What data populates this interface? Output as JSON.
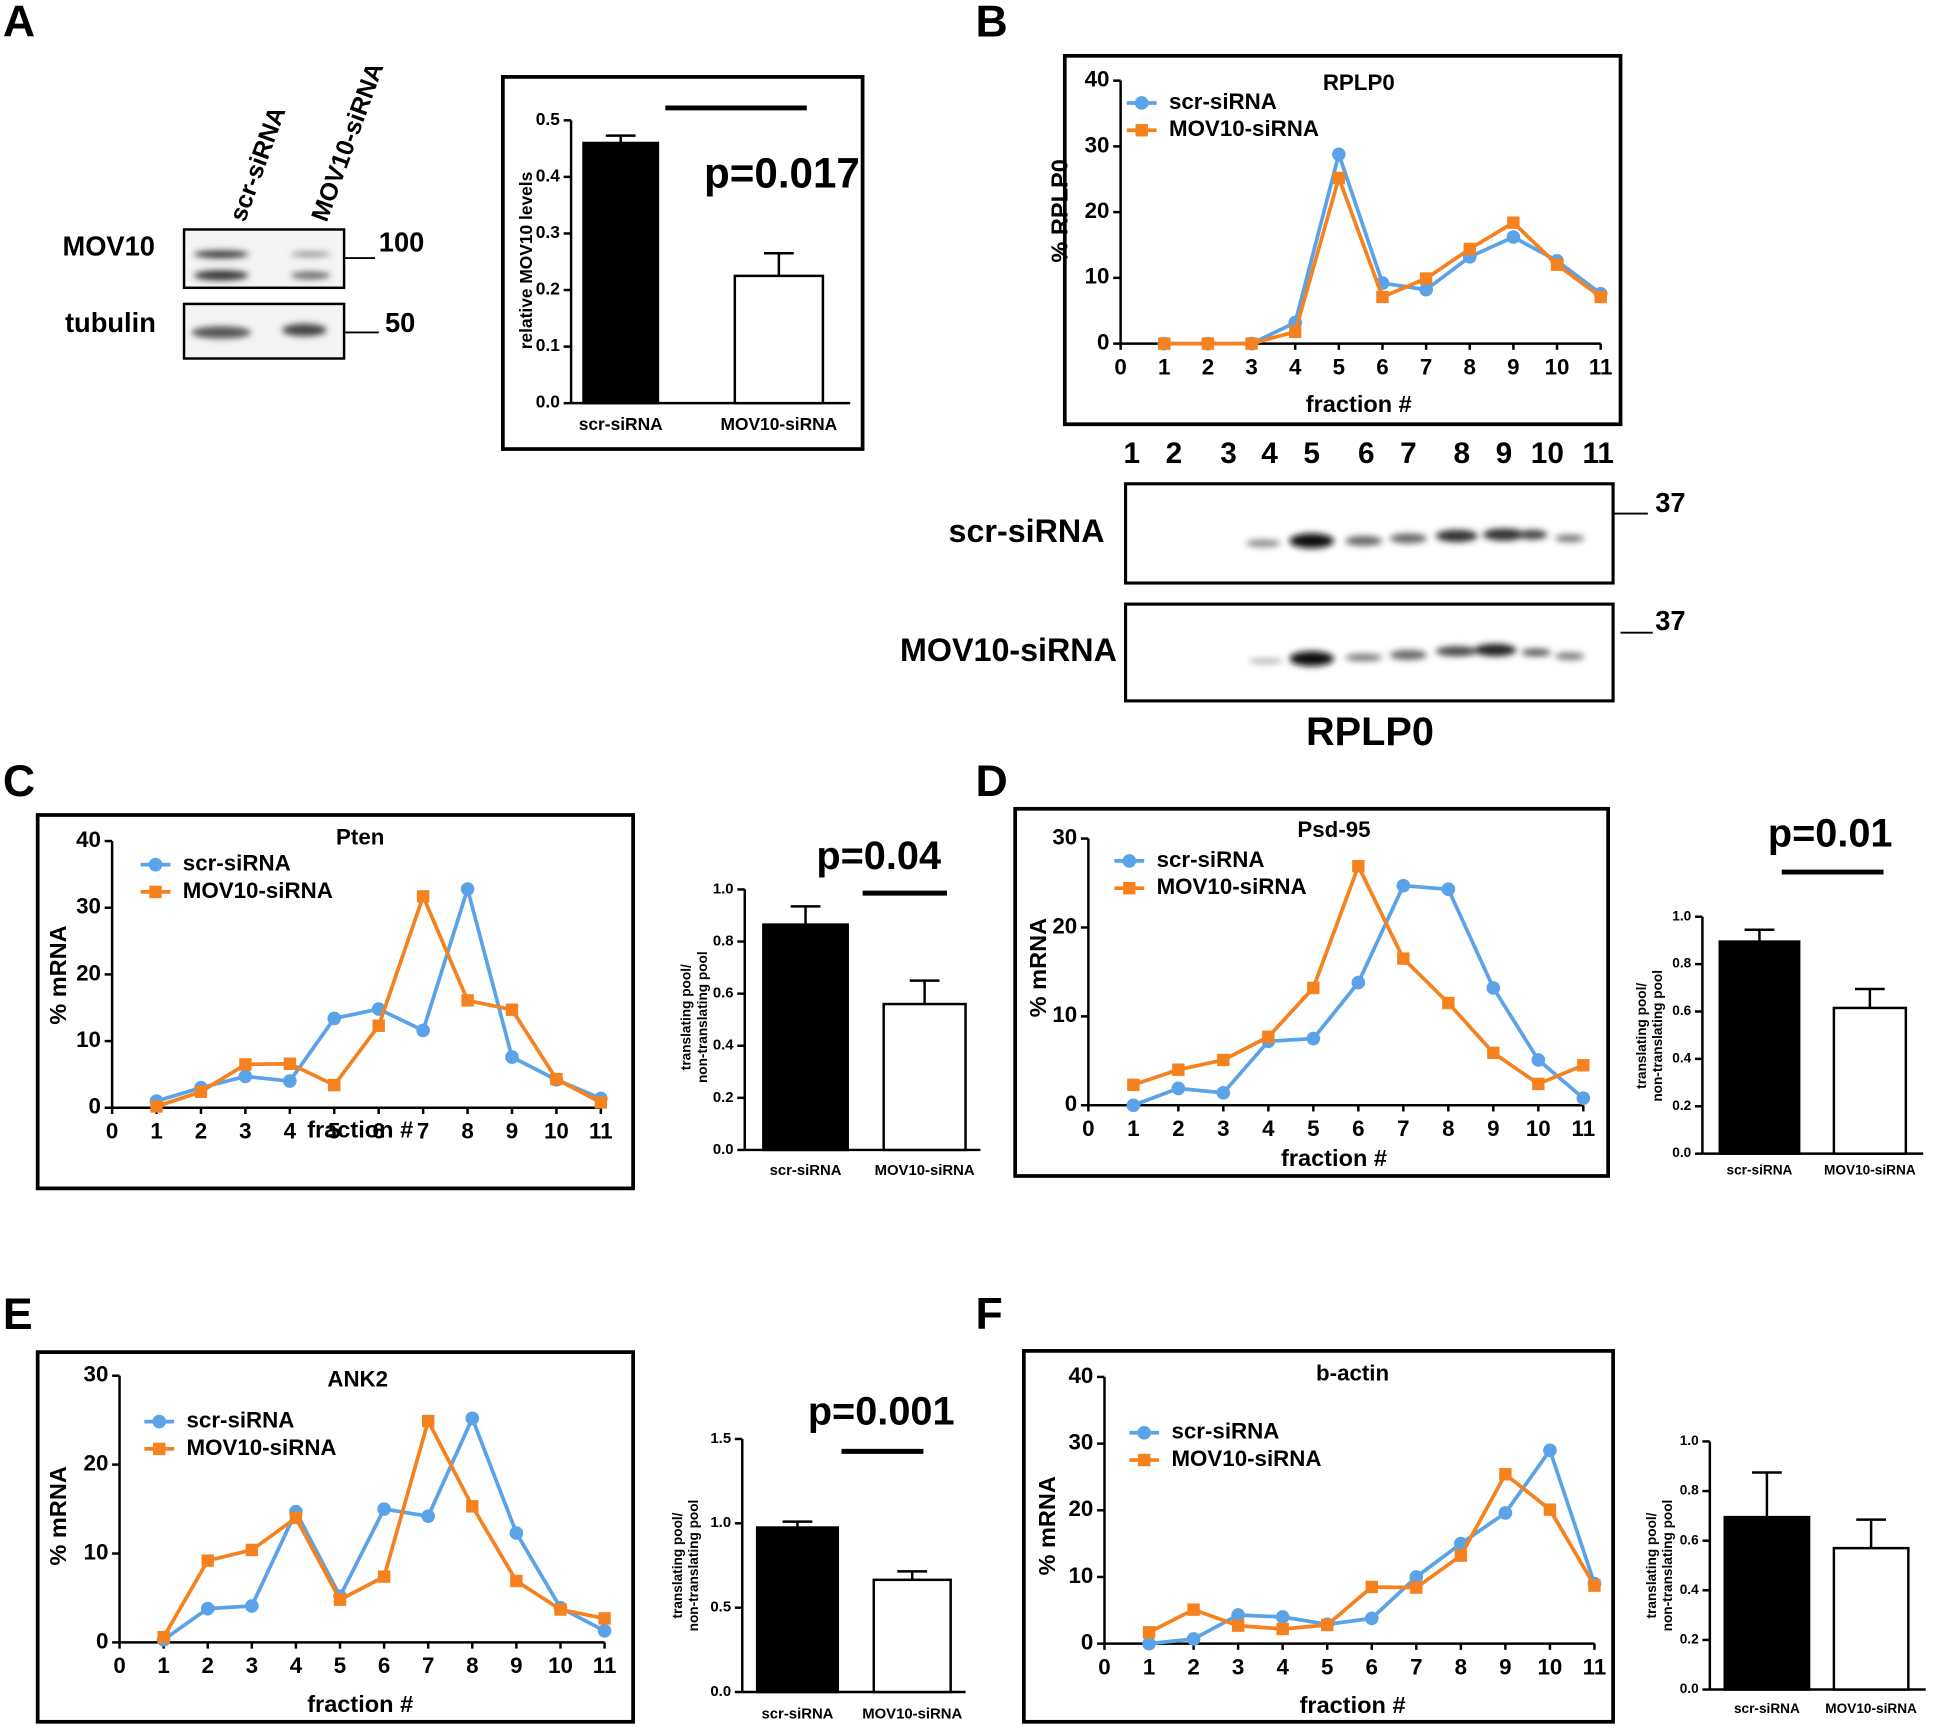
{
  "panels": [
    "A",
    "B",
    "C",
    "D",
    "E",
    "F"
  ],
  "blots": {
    "A": {
      "lanes": [
        "scr-siRNA",
        "MOV10-siRNA"
      ],
      "rows": [
        "MOV10",
        "tubulin"
      ],
      "markers": [
        "100",
        "50"
      ]
    },
    "B": {
      "lanes": [
        "1",
        "2",
        "3",
        "4",
        "5",
        "6",
        "7",
        "8",
        "9",
        "10",
        "11"
      ],
      "rows": [
        "scr-siRNA",
        "MOV10-siRNA"
      ],
      "markers": [
        "37",
        "37"
      ],
      "title": "RPLP0"
    }
  },
  "chart_data": [
    {
      "type": "bar",
      "ylabel": [
        "relative MOV10 levels"
      ],
      "categories": [
        "scr-siRNA",
        "MOV10-siRNA"
      ],
      "values": [
        0.46,
        0.225
      ],
      "errors": [
        0.013,
        0.04
      ],
      "colors": [
        "#000000",
        "#ffffff"
      ],
      "ylim": [
        0,
        0.5
      ],
      "yticks": [
        {
          "value": 0,
          "label": "0.0"
        },
        0.1,
        0.2,
        0.3,
        0.4,
        0.5
      ],
      "annotation": "p=0.017"
    },
    {
      "type": "line",
      "title": "RPLP0",
      "ylabel": "% RPLP0",
      "xlabel": "fraction #",
      "x": [
        1,
        2,
        3,
        4,
        5,
        6,
        7,
        8,
        9,
        10,
        11
      ],
      "xlim": [
        0,
        11
      ],
      "xticks": [
        0,
        1,
        2,
        3,
        4,
        5,
        6,
        7,
        8,
        9,
        10,
        11
      ],
      "ylim": [
        0,
        40
      ],
      "yticks": [
        0,
        10,
        20,
        30,
        40
      ],
      "series": [
        {
          "name": "scr-siRNA",
          "color": "#5ba3e8",
          "marker": "circle",
          "values": [
            0,
            0,
            0,
            3.2,
            28.8,
            9.2,
            8.2,
            13.2,
            16.2,
            12.6,
            7.6
          ]
        },
        {
          "name": "MOV10-siRNA",
          "color": "#f5821f",
          "marker": "square",
          "values": [
            0,
            0,
            0,
            1.8,
            25.2,
            7.1,
            9.9,
            14.4,
            18.4,
            12,
            7.1
          ]
        }
      ]
    },
    {
      "type": "line",
      "title": "Pten",
      "ylabel": "% mRNA",
      "xlabel": "fraction #",
      "x": [
        1,
        2,
        3,
        4,
        5,
        6,
        7,
        8,
        9,
        10,
        11
      ],
      "xlim": [
        0,
        11
      ],
      "xticks": [
        0,
        1,
        2,
        3,
        4,
        5,
        6,
        7,
        8,
        9,
        10,
        11
      ],
      "ylim": [
        0,
        40
      ],
      "yticks": [
        0,
        10,
        20,
        30,
        40
      ],
      "series": [
        {
          "name": "scr-siRNA",
          "color": "#5ba3e8",
          "marker": "circle",
          "values": [
            1,
            3,
            4.7,
            4,
            13.4,
            14.8,
            11.6,
            32.8,
            7.6,
            4.2,
            1.4
          ]
        },
        {
          "name": "MOV10-siRNA",
          "color": "#f5821f",
          "marker": "square",
          "values": [
            0.2,
            2.4,
            6.5,
            6.6,
            3.4,
            12.3,
            31.7,
            16.1,
            14.7,
            4.3,
            0.8
          ]
        }
      ]
    },
    {
      "type": "bar",
      "ylabel": [
        "translating pool/",
        "non-translating pool"
      ],
      "categories": [
        "scr-siRNA",
        "MOV10-siRNA"
      ],
      "values": [
        0.865,
        0.56
      ],
      "errors": [
        0.07,
        0.09
      ],
      "colors": [
        "#000000",
        "#ffffff"
      ],
      "ylim": [
        0,
        1
      ],
      "yticks": [
        {
          "value": 0,
          "label": "0.0"
        },
        0.2,
        0.4,
        0.6,
        0.8,
        {
          "value": 1,
          "label": "1.0"
        }
      ],
      "annotation": "p=0.04"
    },
    {
      "type": "line",
      "title": "Psd-95",
      "ylabel": "% mRNA",
      "xlabel": "fraction #",
      "x": [
        1,
        2,
        3,
        4,
        5,
        6,
        7,
        8,
        9,
        10,
        11
      ],
      "xlim": [
        0,
        11
      ],
      "xticks": [
        0,
        1,
        2,
        3,
        4,
        5,
        6,
        7,
        8,
        9,
        10,
        11
      ],
      "ylim": [
        0,
        30
      ],
      "yticks": [
        0,
        10,
        20,
        30
      ],
      "series": [
        {
          "name": "scr-siRNA",
          "color": "#5ba3e8",
          "marker": "circle",
          "values": [
            0,
            1.9,
            1.4,
            7.2,
            7.5,
            13.8,
            24.7,
            24.3,
            13.2,
            5.1,
            0.8
          ]
        },
        {
          "name": "MOV10-siRNA",
          "color": "#f5821f",
          "marker": "square",
          "values": [
            2.3,
            4,
            5.1,
            7.7,
            13.2,
            26.9,
            16.5,
            11.5,
            5.9,
            2.4,
            4.5
          ]
        }
      ]
    },
    {
      "type": "bar",
      "ylabel": [
        "translating pool/",
        "non-translating pool"
      ],
      "categories": [
        "scr-siRNA",
        "MOV10-siRNA"
      ],
      "values": [
        0.895,
        0.615
      ],
      "errors": [
        0.05,
        0.08
      ],
      "colors": [
        "#000000",
        "#ffffff"
      ],
      "ylim": [
        0,
        1
      ],
      "yticks": [
        {
          "value": 0,
          "label": "0.0"
        },
        0.2,
        0.4,
        0.6,
        0.8,
        {
          "value": 1,
          "label": "1.0"
        }
      ],
      "annotation": "p=0.01"
    },
    {
      "type": "line",
      "title": "ANK2",
      "ylabel": "% mRNA",
      "xlabel": "fraction #",
      "x": [
        1,
        2,
        3,
        4,
        5,
        6,
        7,
        8,
        9,
        10,
        11
      ],
      "xlim": [
        0,
        11
      ],
      "xticks": [
        0,
        1,
        2,
        3,
        4,
        5,
        6,
        7,
        8,
        9,
        10,
        11
      ],
      "ylim": [
        0,
        30
      ],
      "yticks": [
        0,
        10,
        20,
        30
      ],
      "series": [
        {
          "name": "scr-siRNA",
          "color": "#5ba3e8",
          "marker": "circle",
          "values": [
            0.3,
            3.8,
            4.1,
            14.7,
            5.2,
            15,
            14.2,
            25.2,
            12.3,
            3.9,
            1.3
          ]
        },
        {
          "name": "MOV10-siRNA",
          "color": "#f5821f",
          "marker": "square",
          "values": [
            0.6,
            9.2,
            10.4,
            14,
            4.8,
            7.4,
            24.9,
            15.3,
            6.9,
            3.7,
            2.7
          ]
        }
      ]
    },
    {
      "type": "bar",
      "ylabel": [
        "translating pool/",
        "non-translating pool"
      ],
      "categories": [
        "scr-siRNA",
        "MOV10-siRNA"
      ],
      "values": [
        0.975,
        0.665
      ],
      "errors": [
        0.035,
        0.05
      ],
      "colors": [
        "#000000",
        "#ffffff"
      ],
      "ylim": [
        0,
        1.5
      ],
      "yticks": [
        {
          "value": 0,
          "label": "0.0"
        },
        0.5,
        {
          "value": 1,
          "label": "1.0"
        },
        1.5
      ],
      "annotation": "p=0.001"
    },
    {
      "type": "line",
      "title": "b-actin",
      "ylabel": "% mRNA",
      "xlabel": "fraction #",
      "x": [
        1,
        2,
        3,
        4,
        5,
        6,
        7,
        8,
        9,
        10,
        11
      ],
      "xlim": [
        0,
        11
      ],
      "xticks": [
        0,
        1,
        2,
        3,
        4,
        5,
        6,
        7,
        8,
        9,
        10,
        11
      ],
      "ylim": [
        0,
        40
      ],
      "yticks": [
        0,
        10,
        20,
        30,
        40
      ],
      "series": [
        {
          "name": "scr-siRNA",
          "color": "#5ba3e8",
          "marker": "circle",
          "values": [
            0,
            0.7,
            4.3,
            4,
            2.9,
            3.8,
            10,
            15,
            19.6,
            29,
            9
          ]
        },
        {
          "name": "MOV10-siRNA",
          "color": "#f5821f",
          "marker": "square",
          "values": [
            1.7,
            5.1,
            2.7,
            2.2,
            2.8,
            8.5,
            8.4,
            13.2,
            25.4,
            20.1,
            8.7
          ]
        }
      ]
    },
    {
      "type": "bar",
      "ylabel": [
        "translating pool/",
        "non-translating pool"
      ],
      "categories": [
        "scr-siRNA",
        "MOV10-siRNA"
      ],
      "values": [
        0.695,
        0.57
      ],
      "errors": [
        0.18,
        0.115
      ],
      "colors": [
        "#000000",
        "#ffffff"
      ],
      "ylim": [
        0,
        1
      ],
      "yticks": [
        {
          "value": 0,
          "label": "0.0"
        },
        0.2,
        0.4,
        0.6,
        0.8,
        {
          "value": 1,
          "label": "1.0"
        }
      ]
    }
  ]
}
